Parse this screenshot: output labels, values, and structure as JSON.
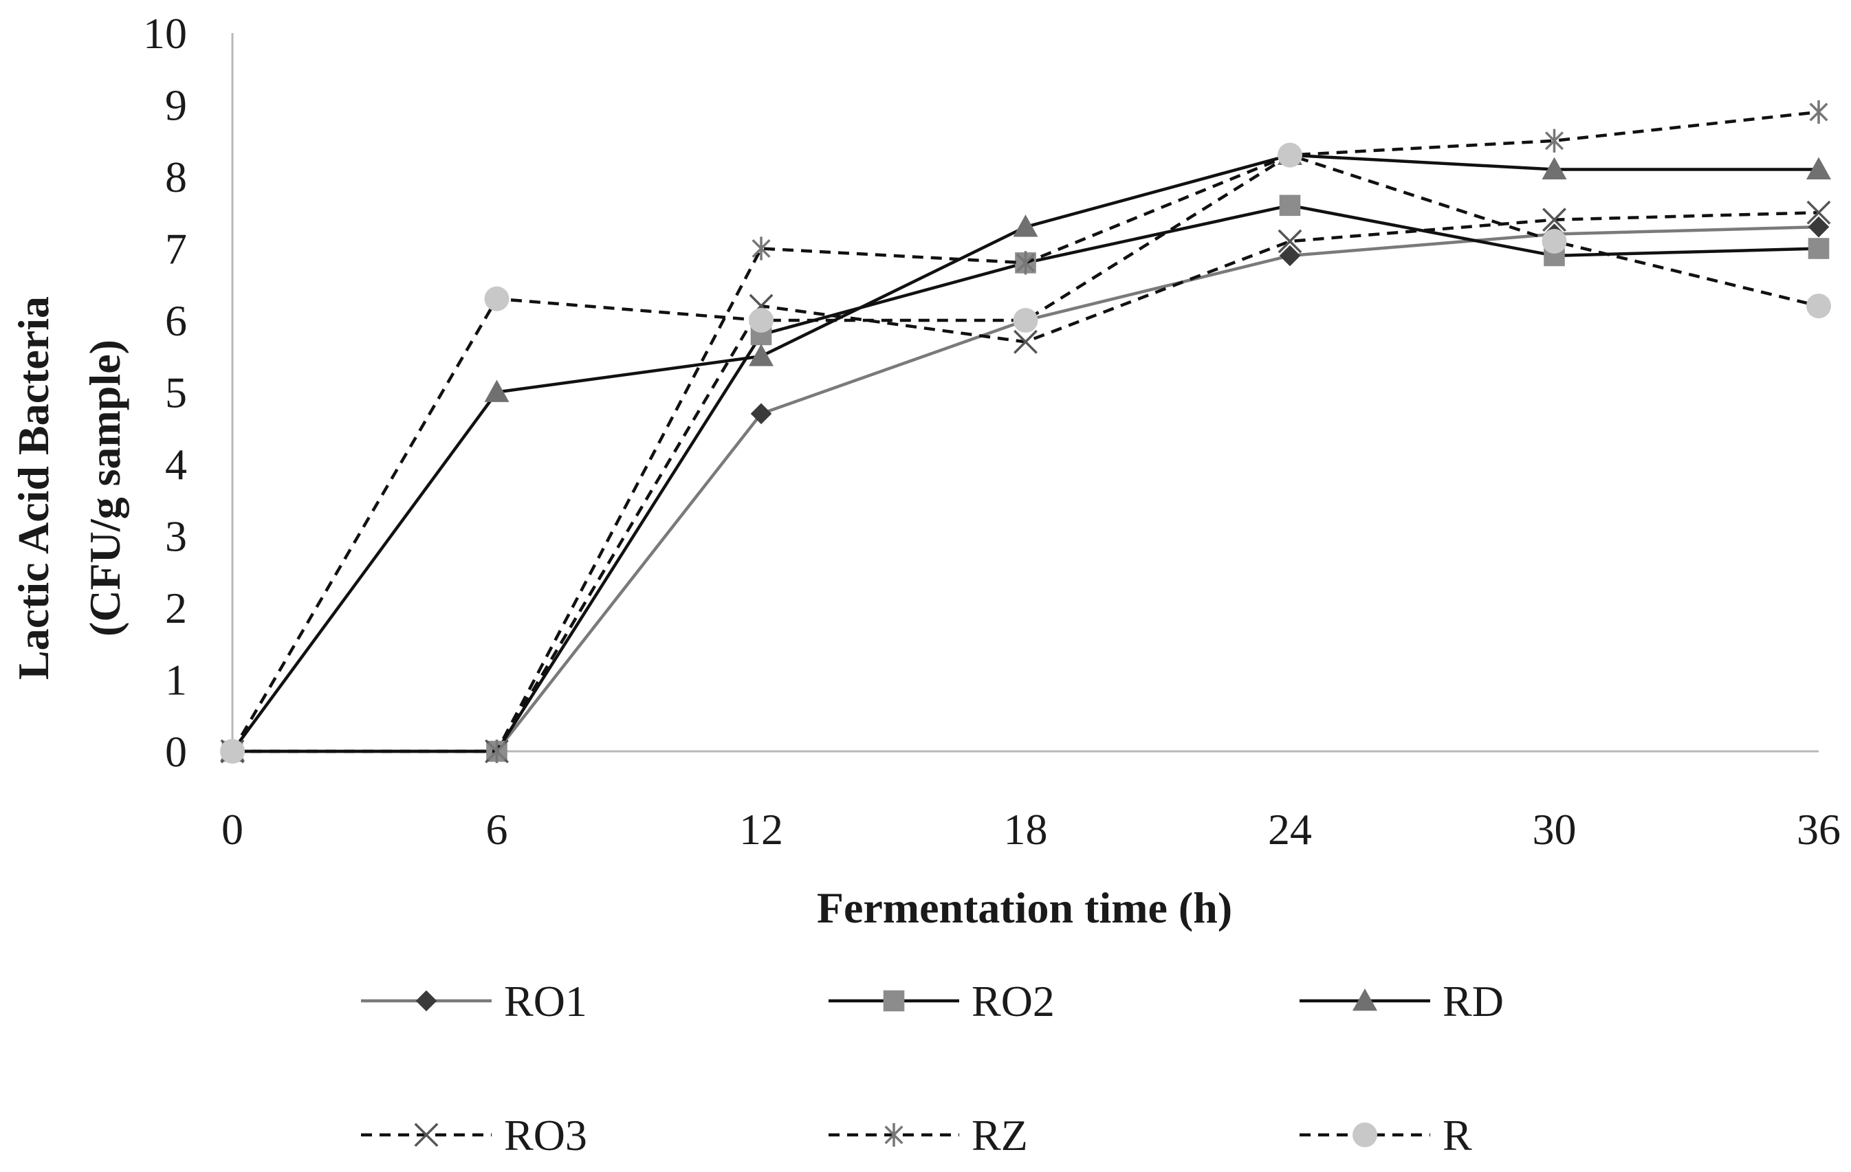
{
  "chart_data": {
    "type": "line",
    "title": "",
    "xlabel": "Fermentation time (h)",
    "ylabel_lines": [
      "Lactic Acid Bacteria",
      "(CFU/g sample)"
    ],
    "categories": [
      "0",
      "6",
      "12",
      "18",
      "24",
      "30",
      "36"
    ],
    "x": [
      0,
      6,
      12,
      18,
      24,
      30,
      36
    ],
    "ylim": [
      0,
      10
    ],
    "yticks": [
      "0",
      "1",
      "2",
      "3",
      "4",
      "5",
      "6",
      "7",
      "8",
      "9",
      "10"
    ],
    "grid": false,
    "legend_position": "bottom",
    "series": [
      {
        "name": "RO1",
        "values": [
          0,
          0,
          4.7,
          6.0,
          6.9,
          7.2,
          7.3
        ],
        "line": "solid",
        "color": "#7a7a7a",
        "marker": "diamond",
        "marker_color": "#3a3a3a"
      },
      {
        "name": "RO2",
        "values": [
          0,
          0,
          5.8,
          6.8,
          7.6,
          6.9,
          7.0
        ],
        "line": "solid",
        "color": "#111111",
        "marker": "square",
        "marker_color": "#8c8c8c"
      },
      {
        "name": "RD",
        "values": [
          0,
          5.0,
          5.5,
          7.3,
          8.3,
          8.1,
          8.1
        ],
        "line": "solid",
        "color": "#111111",
        "marker": "triangle",
        "marker_color": "#707070"
      },
      {
        "name": "RO3",
        "values": [
          0,
          0,
          6.2,
          5.7,
          7.1,
          7.4,
          7.5
        ],
        "line": "dashed",
        "color": "#111111",
        "marker": "x",
        "marker_color": "#555555"
      },
      {
        "name": "RZ",
        "values": [
          0,
          0,
          7.0,
          6.8,
          8.3,
          8.5,
          8.9
        ],
        "line": "dashed",
        "color": "#111111",
        "marker": "star",
        "marker_color": "#777777"
      },
      {
        "name": "R",
        "values": [
          0,
          6.3,
          6.0,
          6.0,
          8.3,
          7.1,
          6.2
        ],
        "line": "dashed",
        "color": "#111111",
        "marker": "circle",
        "marker_color": "#c8c8c8"
      }
    ]
  }
}
